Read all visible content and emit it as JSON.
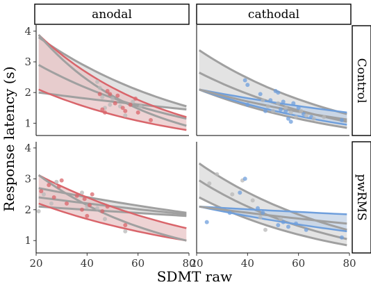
{
  "chart_data": {
    "type": "scatter",
    "xlabel": "SDMT raw",
    "ylabel": "Response latency (s)",
    "xlim": [
      20,
      80
    ],
    "ylim": [
      0.6,
      4.2
    ],
    "x_ticks": [
      "20",
      "40",
      "60",
      "80"
    ],
    "y_ticks": [
      "1",
      "2",
      "3",
      "4"
    ],
    "col_labels": [
      "anodal",
      "cathodal"
    ],
    "row_labels": [
      "Control",
      "pwRMS"
    ],
    "grid": false,
    "colors": {
      "anodal": "#d9656b",
      "anodal_fill": "#e8c4c6",
      "cathodal": "#6f9fdc",
      "cathodal_fill": "#c2d2e6",
      "sham": "#a0a0a0",
      "sham_point": "#b8b8b8"
    },
    "panels": [
      {
        "col": "anodal",
        "row": "Control",
        "fit": {
          "x": [
            21,
            79
          ],
          "y": [
            3.88,
            0.92
          ]
        },
        "ci_upper": {
          "x": [
            21,
            79
          ],
          "y": [
            3.88,
            1.2
          ]
        },
        "ci_lower": {
          "x": [
            21,
            79
          ],
          "y": [
            2.1,
            0.78
          ]
        },
        "sham_fit": {
          "x": [
            21,
            79
          ],
          "y": [
            2.9,
            1.15
          ]
        },
        "sham_ci_upper": {
          "x": [
            21,
            79
          ],
          "y": [
            3.8,
            1.55
          ]
        },
        "sham_ci_lower": {
          "x": [
            21,
            79
          ],
          "y": [
            2.0,
            1.45
          ]
        },
        "points": [
          {
            "x": 44,
            "y": 2.35,
            "g": "sham"
          },
          {
            "x": 45,
            "y": 2.15,
            "g": "sham"
          },
          {
            "x": 46,
            "y": 1.85,
            "g": "sham"
          },
          {
            "x": 47,
            "y": 1.5,
            "g": "sham"
          },
          {
            "x": 49,
            "y": 1.6,
            "g": "sham"
          },
          {
            "x": 50,
            "y": 1.8,
            "g": "sham"
          },
          {
            "x": 53,
            "y": 1.55,
            "g": "sham"
          },
          {
            "x": 55,
            "y": 1.25,
            "g": "sham"
          },
          {
            "x": 58,
            "y": 1.7,
            "g": "sham"
          },
          {
            "x": 61,
            "y": 1.55,
            "g": "sham"
          },
          {
            "x": 45,
            "y": 1.95,
            "g": "stim"
          },
          {
            "x": 46,
            "y": 1.45,
            "g": "stim"
          },
          {
            "x": 47,
            "y": 1.35,
            "g": "stim"
          },
          {
            "x": 48,
            "y": 2.05,
            "g": "stim"
          },
          {
            "x": 49,
            "y": 1.95,
            "g": "stim"
          },
          {
            "x": 51,
            "y": 1.65,
            "g": "stim"
          },
          {
            "x": 52,
            "y": 1.9,
            "g": "stim"
          },
          {
            "x": 54,
            "y": 1.5,
            "g": "stim"
          },
          {
            "x": 55,
            "y": 1.4,
            "g": "stim"
          },
          {
            "x": 57,
            "y": 1.6,
            "g": "stim"
          },
          {
            "x": 59,
            "y": 1.8,
            "g": "stim"
          },
          {
            "x": 60,
            "y": 1.35,
            "g": "stim"
          },
          {
            "x": 65,
            "y": 1.1,
            "g": "stim"
          }
        ]
      },
      {
        "col": "cathodal",
        "row": "Control",
        "fit": {
          "x": [
            21,
            79
          ],
          "y": [
            2.1,
            1.12
          ]
        },
        "ci_upper": {
          "x": [
            21,
            79
          ],
          "y": [
            2.1,
            1.35
          ]
        },
        "ci_lower": {
          "x": [
            21,
            79
          ],
          "y": [
            2.1,
            0.95
          ]
        },
        "sham_fit": {
          "x": [
            21,
            79
          ],
          "y": [
            2.65,
            1.05
          ]
        },
        "sham_ci_upper": {
          "x": [
            21,
            79
          ],
          "y": [
            3.38,
            1.3
          ]
        },
        "sham_ci_lower": {
          "x": [
            21,
            79
          ],
          "y": [
            2.1,
            0.85
          ]
        },
        "points": [
          {
            "x": 39,
            "y": 2.4,
            "g": "stim"
          },
          {
            "x": 40,
            "y": 2.25,
            "g": "stim"
          },
          {
            "x": 40,
            "y": 1.6,
            "g": "stim"
          },
          {
            "x": 45,
            "y": 1.95,
            "g": "stim"
          },
          {
            "x": 47,
            "y": 1.4,
            "g": "stim"
          },
          {
            "x": 49,
            "y": 1.75,
            "g": "stim"
          },
          {
            "x": 51,
            "y": 2.05,
            "g": "stim"
          },
          {
            "x": 52,
            "y": 2.0,
            "g": "stim"
          },
          {
            "x": 53,
            "y": 1.45,
            "g": "stim"
          },
          {
            "x": 54,
            "y": 1.7,
            "g": "stim"
          },
          {
            "x": 55,
            "y": 1.4,
            "g": "stim"
          },
          {
            "x": 56,
            "y": 1.15,
            "g": "stim"
          },
          {
            "x": 57,
            "y": 1.05,
            "g": "stim"
          },
          {
            "x": 58,
            "y": 1.65,
            "g": "stim"
          },
          {
            "x": 60,
            "y": 1.5,
            "g": "stim"
          },
          {
            "x": 62,
            "y": 1.3,
            "g": "stim"
          },
          {
            "x": 65,
            "y": 1.2,
            "g": "stim"
          },
          {
            "x": 77,
            "y": 1.1,
            "g": "stim"
          },
          {
            "x": 46,
            "y": 1.75,
            "g": "sham"
          },
          {
            "x": 48,
            "y": 1.55,
            "g": "sham"
          },
          {
            "x": 50,
            "y": 1.4,
            "g": "sham"
          },
          {
            "x": 52,
            "y": 1.65,
            "g": "sham"
          },
          {
            "x": 55,
            "y": 1.5,
            "g": "sham"
          },
          {
            "x": 57,
            "y": 1.35,
            "g": "sham"
          },
          {
            "x": 59,
            "y": 1.2,
            "g": "sham"
          },
          {
            "x": 61,
            "y": 1.4,
            "g": "sham"
          },
          {
            "x": 63,
            "y": 1.25,
            "g": "sham"
          },
          {
            "x": 66,
            "y": 1.15,
            "g": "sham"
          },
          {
            "x": 70,
            "y": 1.2,
            "g": "sham"
          }
        ]
      },
      {
        "col": "anodal",
        "row": "pwRMS",
        "fit": {
          "x": [
            21,
            79
          ],
          "y": [
            3.12,
            1.0
          ]
        },
        "ci_upper": {
          "x": [
            21,
            79
          ],
          "y": [
            3.12,
            1.4
          ]
        },
        "ci_lower": {
          "x": [
            21,
            79
          ],
          "y": [
            2.2,
            1.0
          ]
        },
        "sham_fit": {
          "x": [
            21,
            79
          ],
          "y": [
            2.4,
            1.85
          ]
        },
        "sham_ci_upper": {
          "x": [
            21,
            79
          ],
          "y": [
            2.7,
            1.9
          ]
        },
        "sham_ci_lower": {
          "x": [
            21,
            79
          ],
          "y": [
            2.1,
            1.8
          ]
        },
        "points": [
          {
            "x": 21,
            "y": 1.95,
            "g": "sham"
          },
          {
            "x": 23,
            "y": 2.5,
            "g": "sham"
          },
          {
            "x": 26,
            "y": 2.2,
            "g": "sham"
          },
          {
            "x": 28,
            "y": 2.9,
            "g": "sham"
          },
          {
            "x": 38,
            "y": 2.55,
            "g": "sham"
          },
          {
            "x": 40,
            "y": 2.1,
            "g": "sham"
          },
          {
            "x": 44,
            "y": 2.05,
            "g": "sham"
          },
          {
            "x": 47,
            "y": 1.7,
            "g": "sham"
          },
          {
            "x": 55,
            "y": 1.3,
            "g": "sham"
          },
          {
            "x": 22,
            "y": 2.6,
            "g": "stim"
          },
          {
            "x": 25,
            "y": 2.8,
            "g": "stim"
          },
          {
            "x": 27,
            "y": 2.4,
            "g": "stim"
          },
          {
            "x": 29,
            "y": 2.75,
            "g": "stim"
          },
          {
            "x": 30,
            "y": 2.95,
            "g": "stim"
          },
          {
            "x": 32,
            "y": 2.2,
            "g": "stim"
          },
          {
            "x": 36,
            "y": 2.45,
            "g": "stim"
          },
          {
            "x": 38,
            "y": 2.0,
            "g": "stim"
          },
          {
            "x": 39,
            "y": 2.35,
            "g": "stim"
          },
          {
            "x": 40,
            "y": 1.8,
            "g": "stim"
          },
          {
            "x": 41,
            "y": 2.15,
            "g": "stim"
          },
          {
            "x": 42,
            "y": 2.5,
            "g": "stim"
          },
          {
            "x": 46,
            "y": 1.95,
            "g": "stim"
          },
          {
            "x": 48,
            "y": 2.1,
            "g": "stim"
          },
          {
            "x": 55,
            "y": 1.5,
            "g": "stim"
          }
        ]
      },
      {
        "col": "cathodal",
        "row": "pwRMS",
        "fit": {
          "x": [
            21,
            79
          ],
          "y": [
            2.1,
            1.55
          ]
        },
        "ci_upper": {
          "x": [
            21,
            79
          ],
          "y": [
            2.1,
            1.85
          ]
        },
        "ci_lower": {
          "x": [
            21,
            79
          ],
          "y": [
            2.1,
            1.3
          ]
        },
        "sham_fit": {
          "x": [
            21,
            79
          ],
          "y": [
            2.95,
            1.05
          ]
        },
        "sham_ci_upper": {
          "x": [
            21,
            79
          ],
          "y": [
            3.5,
            1.35
          ]
        },
        "sham_ci_lower": {
          "x": [
            21,
            79
          ],
          "y": [
            2.4,
            0.85
          ]
        },
        "points": [
          {
            "x": 25,
            "y": 2.85,
            "g": "sham"
          },
          {
            "x": 28,
            "y": 3.15,
            "g": "sham"
          },
          {
            "x": 34,
            "y": 2.5,
            "g": "sham"
          },
          {
            "x": 38,
            "y": 2.95,
            "g": "sham"
          },
          {
            "x": 42,
            "y": 2.3,
            "g": "sham"
          },
          {
            "x": 45,
            "y": 1.75,
            "g": "sham"
          },
          {
            "x": 47,
            "y": 1.35,
            "g": "sham"
          },
          {
            "x": 53,
            "y": 1.7,
            "g": "sham"
          },
          {
            "x": 24,
            "y": 1.6,
            "g": "stim"
          },
          {
            "x": 33,
            "y": 1.9,
            "g": "stim"
          },
          {
            "x": 37,
            "y": 2.55,
            "g": "stim"
          },
          {
            "x": 39,
            "y": 3.0,
            "g": "stim"
          },
          {
            "x": 44,
            "y": 2.05,
            "g": "stim"
          },
          {
            "x": 46,
            "y": 1.9,
            "g": "stim"
          },
          {
            "x": 52,
            "y": 1.5,
            "g": "stim"
          },
          {
            "x": 54,
            "y": 1.6,
            "g": "stim"
          },
          {
            "x": 56,
            "y": 1.45,
            "g": "stim"
          },
          {
            "x": 59,
            "y": 1.55,
            "g": "stim"
          },
          {
            "x": 63,
            "y": 1.35,
            "g": "stim"
          },
          {
            "x": 77,
            "y": 1.1,
            "g": "stim"
          }
        ]
      }
    ]
  }
}
